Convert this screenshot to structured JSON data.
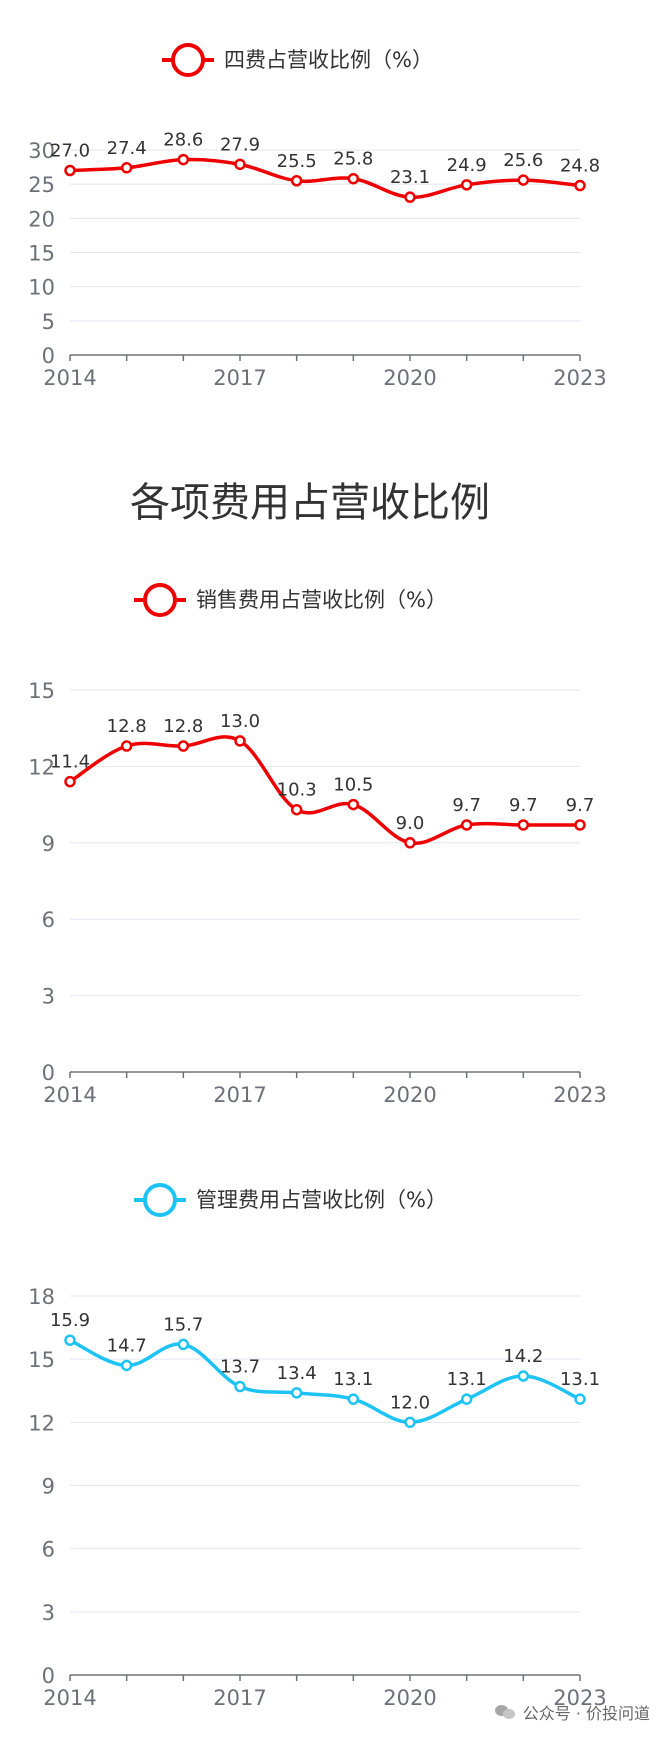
{
  "heading": "各项费用占营收比例",
  "watermark": "公众号 · 价投问道",
  "chart_data": [
    {
      "type": "line",
      "legend": "四费占营收比例（%）",
      "color": "#ee0000",
      "x": [
        2014,
        2015,
        2016,
        2017,
        2018,
        2019,
        2020,
        2021,
        2022,
        2023
      ],
      "values": [
        27.0,
        27.4,
        28.6,
        27.9,
        25.5,
        25.8,
        23.1,
        24.9,
        25.6,
        24.8
      ],
      "labels": [
        "27.0",
        "27.4",
        "28.6",
        "27.9",
        "25.5",
        "25.8",
        "23.1",
        "24.9",
        "25.6",
        "24.8"
      ],
      "yticks": [
        "0",
        "5",
        "10",
        "15",
        "20",
        "25",
        "30"
      ],
      "xticks": [
        "2014",
        "2017",
        "2020",
        "2023"
      ],
      "ylim": [
        0,
        30
      ],
      "grid": true
    },
    {
      "type": "line",
      "legend": "销售费用占营收比例（%）",
      "color": "#ee0000",
      "x": [
        2014,
        2015,
        2016,
        2017,
        2018,
        2019,
        2020,
        2021,
        2022,
        2023
      ],
      "values": [
        11.4,
        12.8,
        12.8,
        13.0,
        10.3,
        10.5,
        9.0,
        9.7,
        9.7,
        9.7
      ],
      "labels": [
        "11.4",
        "12.8",
        "12.8",
        "13.0",
        "10.3",
        "10.5",
        "9.0",
        "9.7",
        "9.7",
        "9.7"
      ],
      "yticks": [
        "0",
        "3",
        "6",
        "9",
        "12",
        "15"
      ],
      "xticks": [
        "2014",
        "2017",
        "2020",
        "2023"
      ],
      "ylim": [
        0,
        15
      ],
      "grid": true
    },
    {
      "type": "line",
      "legend": "管理费用占营收比例（%）",
      "color": "#1ec3f5",
      "x": [
        2014,
        2015,
        2016,
        2017,
        2018,
        2019,
        2020,
        2021,
        2022,
        2023
      ],
      "values": [
        15.9,
        14.7,
        15.7,
        13.7,
        13.4,
        13.1,
        12.0,
        13.1,
        14.2,
        13.1
      ],
      "labels": [
        "15.9",
        "14.7",
        "15.7",
        "13.7",
        "13.4",
        "13.1",
        "12.0",
        "13.1",
        "14.2",
        "13.1"
      ],
      "yticks": [
        "0",
        "3",
        "6",
        "9",
        "12",
        "15",
        "18"
      ],
      "xticks": [
        "2014",
        "2017",
        "2020",
        "2023"
      ],
      "ylim": [
        0,
        18
      ],
      "grid": true
    }
  ]
}
